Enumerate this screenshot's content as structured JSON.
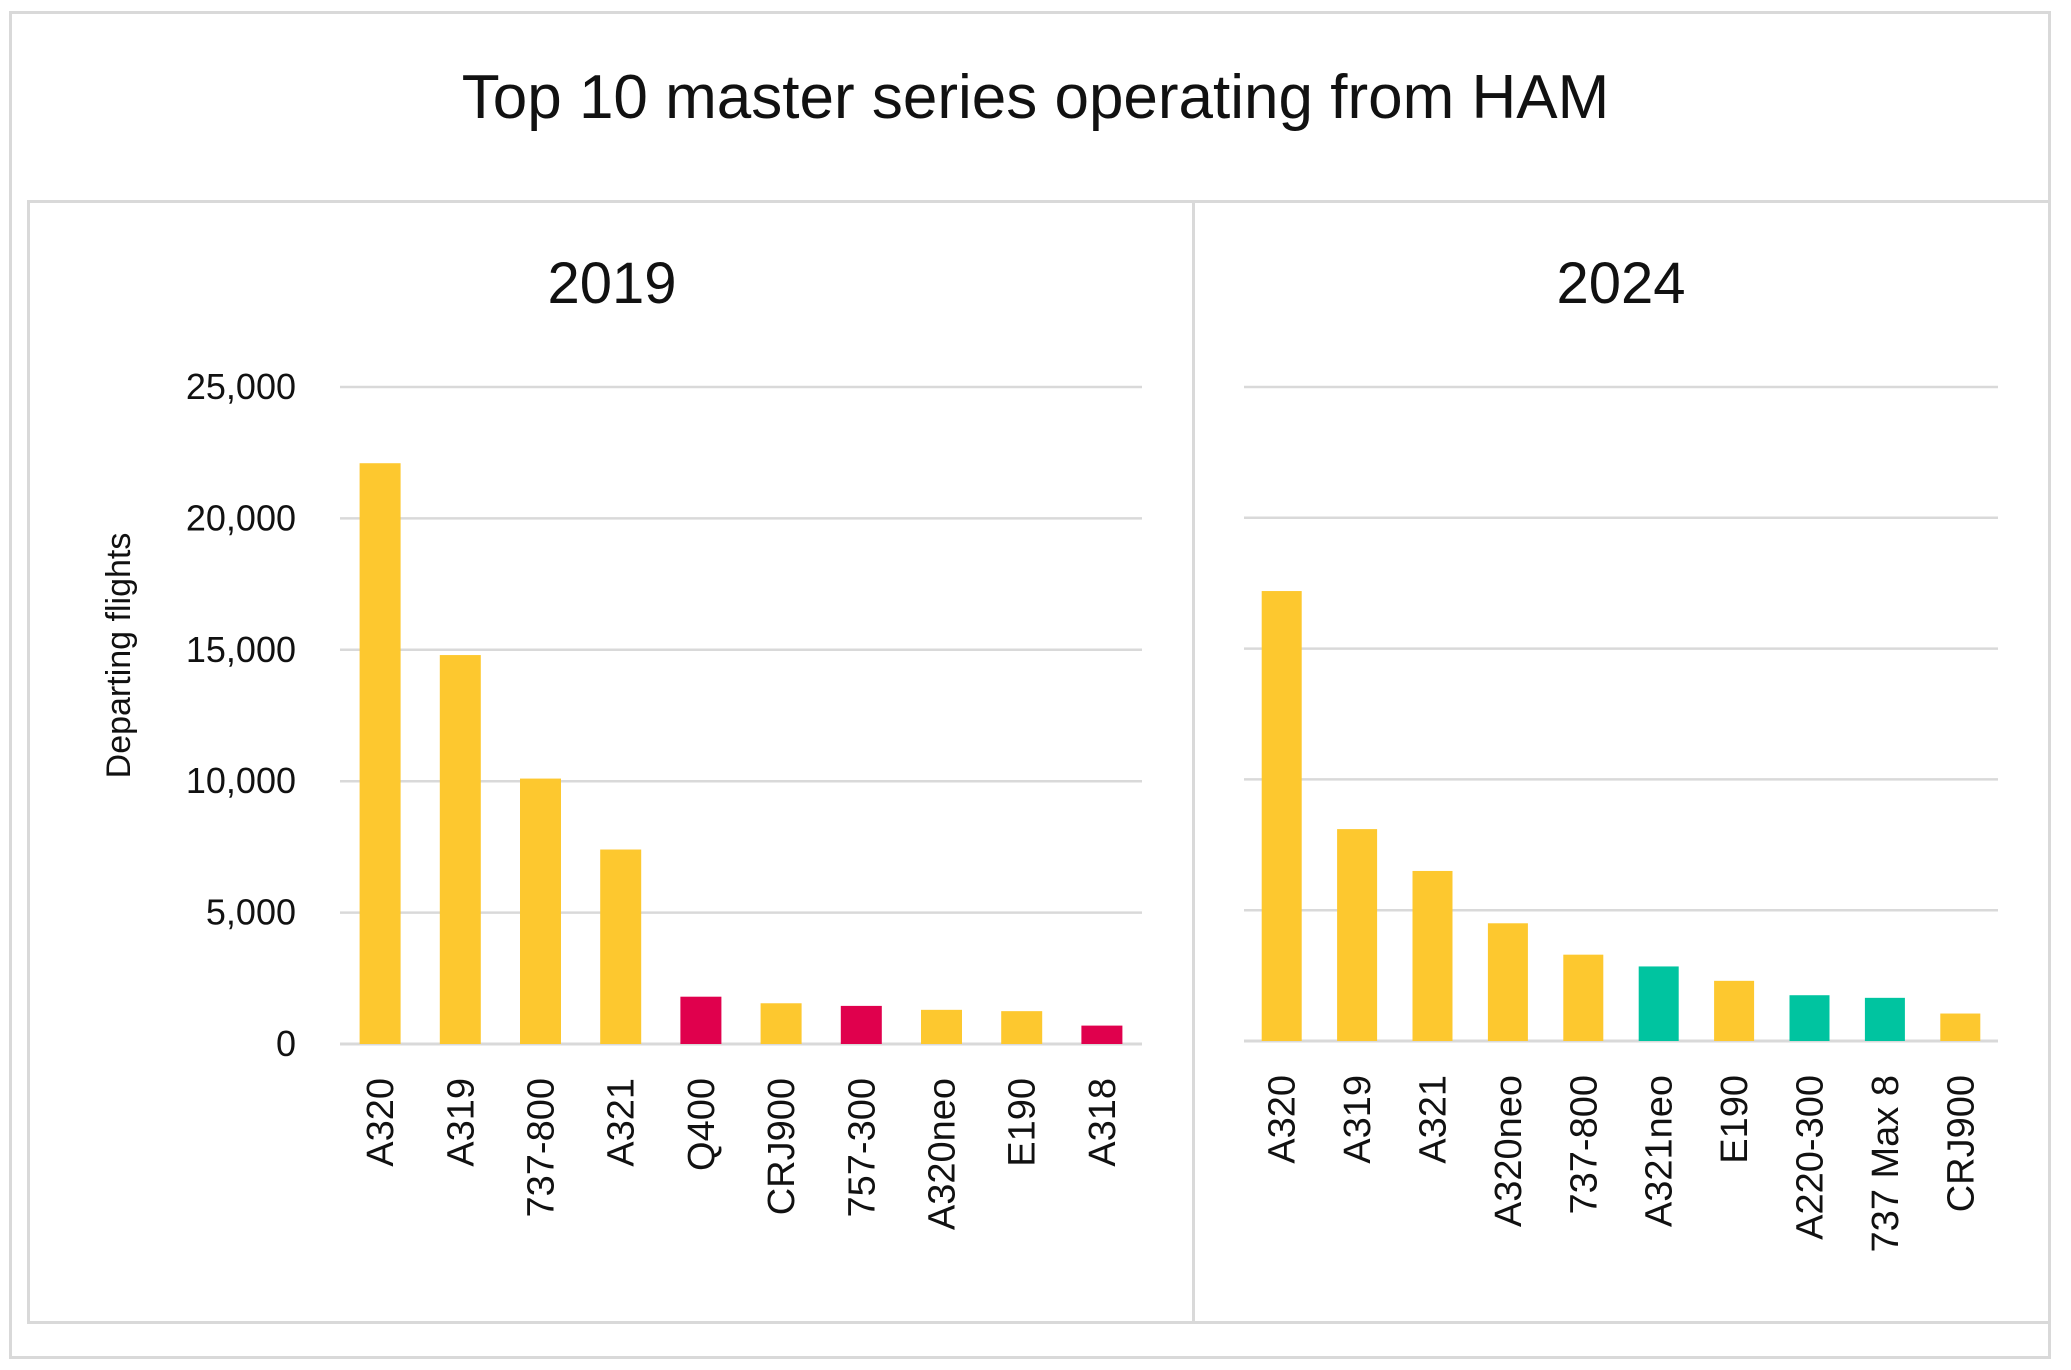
{
  "title": "Top 10 master series operating from HAM",
  "colors": {
    "yellow": "#FDC82F",
    "red": "#E0004D",
    "green": "#00C4A0",
    "grid": "#d9d9d9",
    "text": "#111111"
  },
  "chart_data": [
    {
      "type": "bar",
      "title": "2019",
      "ylabel": "Departing flights",
      "ylim": [
        0,
        25000
      ],
      "yticks": [
        "0",
        "5,000",
        "10,000",
        "15,000",
        "20,000",
        "25,000"
      ],
      "grid": true,
      "categories": [
        "A320",
        "A319",
        "737-800",
        "A321",
        "Q400",
        "CRJ900",
        "757-300",
        "A320neo",
        "E190",
        "A318"
      ],
      "values": [
        22100,
        14800,
        10100,
        7400,
        1800,
        1550,
        1450,
        1300,
        1250,
        700
      ],
      "colors": [
        "yellow",
        "yellow",
        "yellow",
        "yellow",
        "red",
        "yellow",
        "red",
        "yellow",
        "yellow",
        "red"
      ]
    },
    {
      "type": "bar",
      "title": "2024",
      "ylabel": "",
      "ylim": [
        0,
        25000
      ],
      "grid": true,
      "categories": [
        "A320",
        "A319",
        "A321",
        "A320neo",
        "737-800",
        "A321neo",
        "E190",
        "A220-300",
        "737 Max 8",
        "CRJ900"
      ],
      "values": [
        17200,
        8100,
        6500,
        4500,
        3300,
        2850,
        2300,
        1750,
        1650,
        1050
      ],
      "colors": [
        "yellow",
        "yellow",
        "yellow",
        "yellow",
        "yellow",
        "green",
        "yellow",
        "green",
        "green",
        "yellow"
      ]
    }
  ]
}
